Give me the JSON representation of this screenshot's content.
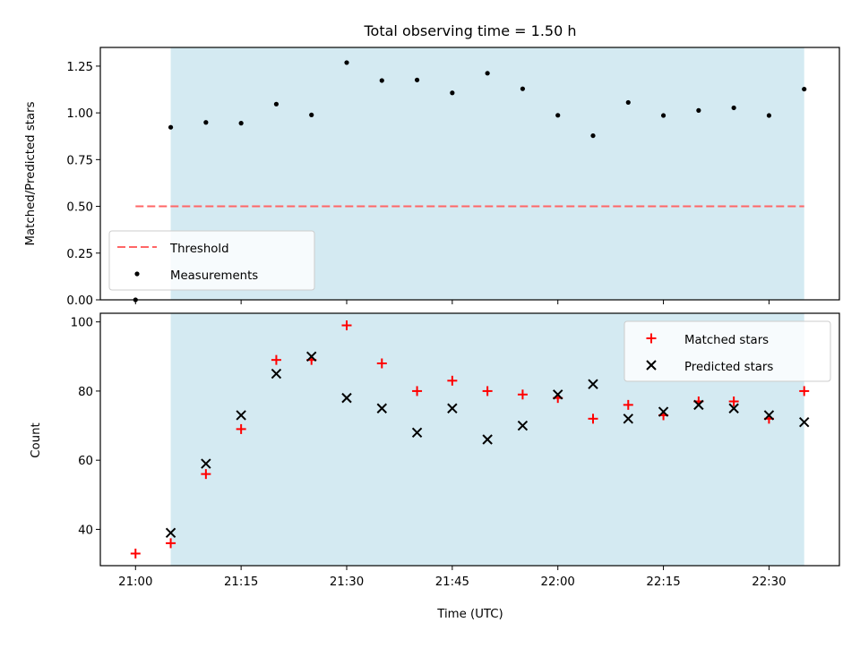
{
  "chart_data": {
    "title": "Total observing time = 1.50 h",
    "xlabel": "Time (UTC)",
    "x_ticks": [
      "21:00",
      "21:15",
      "21:30",
      "21:45",
      "22:00",
      "22:15",
      "22:30"
    ],
    "x_range_minutes": [
      -5,
      100
    ],
    "observing_span_minutes": [
      5,
      95
    ],
    "shading_color": "#add8e6",
    "charts": [
      {
        "type": "scatter",
        "ylabel": "Matched/Predicted stars",
        "ylim": [
          0,
          1.35
        ],
        "y_ticks": [
          "0.00",
          "0.25",
          "0.50",
          "0.75",
          "1.00",
          "1.25"
        ],
        "legend_position": "lower-left",
        "threshold": {
          "name": "Threshold",
          "value": 0.5,
          "color": "#ff6666",
          "x": [
            0,
            95
          ]
        },
        "series": [
          {
            "name": "Measurements",
            "color": "#000000",
            "x": [
              0,
              5,
              10,
              15,
              20,
              25,
              30,
              35,
              40,
              45,
              50,
              55,
              60,
              65,
              70,
              75,
              80,
              85,
              90,
              95
            ],
            "y": [
              0.0,
              0.923,
              0.949,
              0.945,
              1.047,
              0.989,
              1.269,
              1.173,
              1.176,
              1.107,
              1.212,
              1.129,
              0.987,
              0.878,
              1.056,
              0.986,
              1.013,
              1.027,
              0.986,
              1.127
            ]
          }
        ]
      },
      {
        "type": "scatter",
        "ylabel": "Count",
        "ylim": [
          29.5,
          102.5
        ],
        "y_ticks": [
          "40",
          "60",
          "80",
          "100"
        ],
        "legend_position": "top-right",
        "series": [
          {
            "name": "Matched stars",
            "marker": "plus",
            "color": "#ff0000",
            "x": [
              0,
              5,
              10,
              15,
              20,
              25,
              30,
              35,
              40,
              45,
              50,
              55,
              60,
              65,
              70,
              75,
              80,
              85,
              90,
              95
            ],
            "y": [
              33,
              36,
              56,
              69,
              89,
              89,
              99,
              88,
              80,
              83,
              80,
              79,
              78,
              72,
              76,
              73,
              77,
              77,
              72,
              80
            ]
          },
          {
            "name": "Predicted stars",
            "marker": "x",
            "color": "#000000",
            "x": [
              5,
              10,
              15,
              20,
              25,
              30,
              35,
              40,
              45,
              50,
              55,
              60,
              65,
              70,
              75,
              80,
              85,
              90,
              95
            ],
            "y": [
              39,
              59,
              73,
              85,
              90,
              78,
              75,
              68,
              75,
              66,
              70,
              79,
              82,
              72,
              74,
              76,
              75,
              73,
              71
            ]
          }
        ]
      }
    ]
  }
}
